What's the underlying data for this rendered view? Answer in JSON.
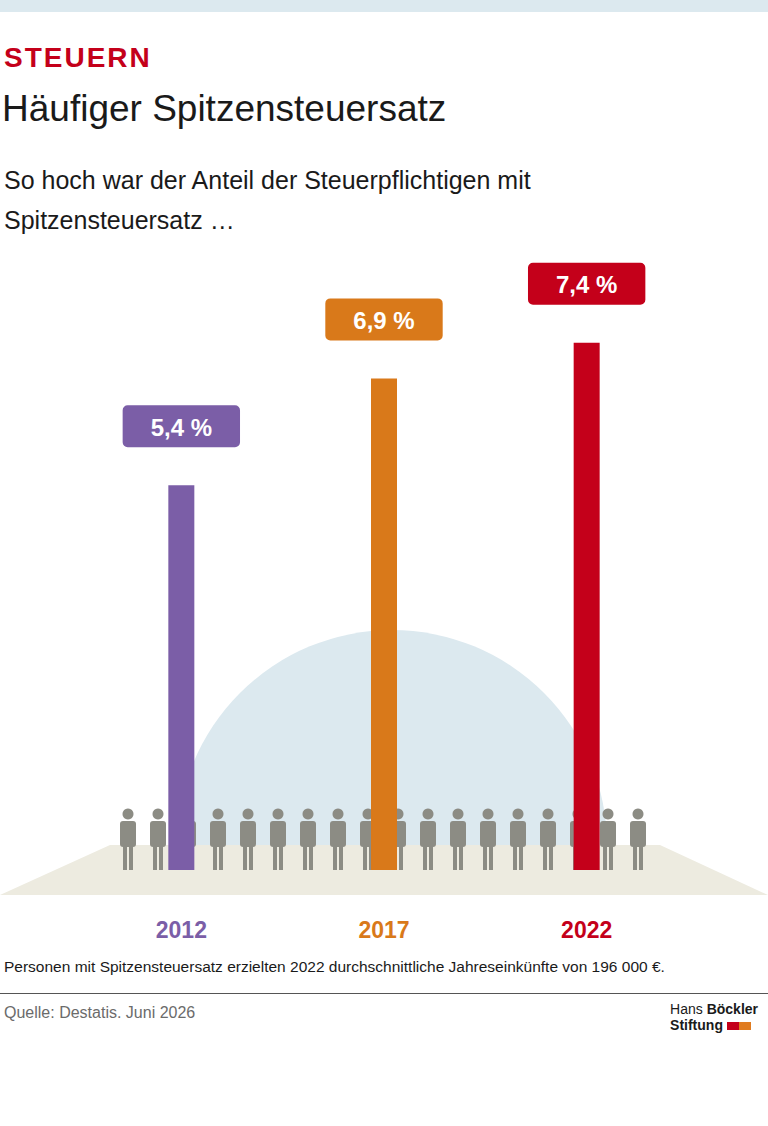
{
  "chart_data": {
    "type": "bar",
    "kicker": "STEUERN",
    "title": "Häufiger Spitzensteuersatz",
    "subtitle": "So hoch war der Anteil der Steuerpflichtigen mit Spitzensteuersatz …",
    "categories": [
      "2012",
      "2017",
      "2022"
    ],
    "values": [
      5.4,
      6.9,
      7.4
    ],
    "value_labels": [
      "5,4 %",
      "6,9 %",
      "7,4 %"
    ],
    "colors": [
      "#7b5ea7",
      "#d9791a",
      "#c4001a"
    ],
    "data_labels": true,
    "tick_labels": "x",
    "grid": false,
    "note": "Personen mit Spitzensteuersatz erzielten 2022 durchschnittliche Jahreseinkünfte von 196 000 €.",
    "source": "Quelle: Destatis. Juni 2026",
    "logo": [
      "Hans Böckler",
      "Stiftung"
    ]
  }
}
